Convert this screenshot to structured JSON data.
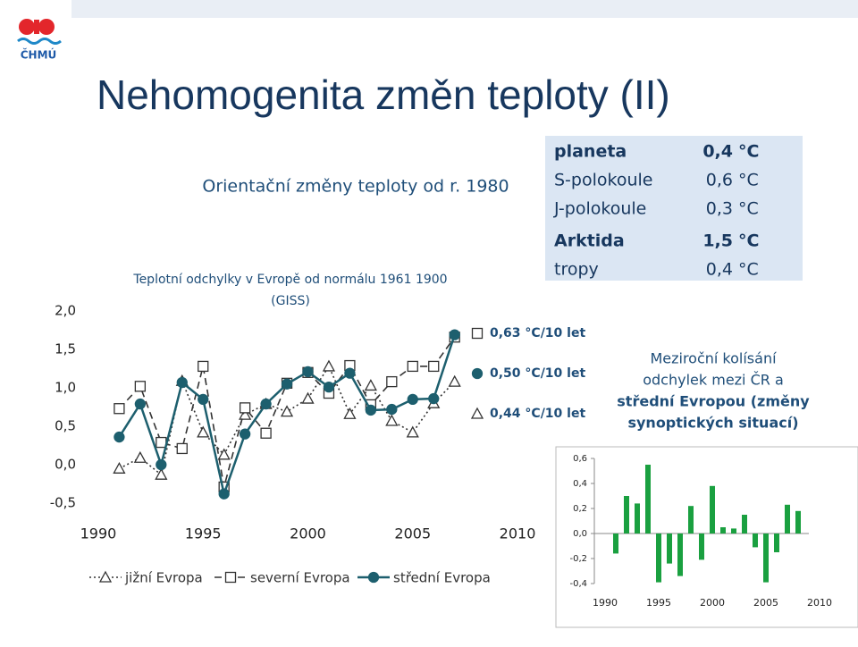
{
  "logo": "ČHMÚ",
  "title": "Nehomogenita změn teploty (II)",
  "subtitle": "Orientační změny teploty od r. 1980",
  "trends": [
    {
      "region": "planeta",
      "value": "0,4",
      "unit": "°C",
      "bold": true
    },
    {
      "region": "S-polokoule",
      "value": "0,6",
      "unit": "°C",
      "bold": false
    },
    {
      "region": "J-polokoule",
      "value": "0,3",
      "unit": "°C",
      "bold": false
    },
    {
      "region": "Arktida",
      "value": "1,5",
      "unit": "°C",
      "bold": true
    },
    {
      "region": "tropy",
      "value": "0,4",
      "unit": "°C",
      "bold": false
    }
  ],
  "chart_data": [
    {
      "type": "line",
      "title": [
        "Teplotní odchylky v Evropě od  normálu 1961 1900",
        "(GISS)"
      ],
      "x": [
        1991,
        1992,
        1993,
        1994,
        1995,
        1996,
        1997,
        1998,
        1999,
        2000,
        2001,
        2002,
        2003,
        2004,
        2005,
        2006,
        2007
      ],
      "series": [
        {
          "name": "jižní Evropa",
          "color": "#333333",
          "dash": "2,3",
          "marker": "triangle",
          "values": [
            -0.05,
            0.09,
            -0.13,
            1.09,
            0.42,
            0.13,
            0.65,
            0.79,
            0.69,
            0.86,
            1.28,
            0.66,
            1.03,
            0.57,
            0.42,
            0.8,
            1.08
          ]
        },
        {
          "name": "severní Evropa",
          "color": "#333333",
          "dash": "8,5",
          "marker": "square",
          "values": [
            0.73,
            1.02,
            0.29,
            0.21,
            1.28,
            -0.29,
            0.74,
            0.41,
            1.06,
            1.2,
            0.93,
            1.29,
            0.78,
            1.08,
            1.28,
            1.28,
            1.66
          ]
        },
        {
          "name": "střední Evropa",
          "color": "#1d5f6e",
          "dash": "none",
          "marker": "circle",
          "values": [
            0.36,
            0.79,
            0.0,
            1.07,
            0.85,
            -0.38,
            0.4,
            0.79,
            1.05,
            1.21,
            1.01,
            1.19,
            0.71,
            0.72,
            0.85,
            0.86,
            1.69
          ]
        }
      ],
      "annotations": [
        "0,63 °C/10 let",
        "0,50 °C/10 let",
        "0,44 °C/10 let"
      ],
      "xlim": [
        1989,
        2011
      ],
      "xticks": [
        1990,
        1995,
        2000,
        2005,
        2010
      ],
      "ylim": [
        -0.5,
        2.0
      ],
      "yticks": [
        {
          "value": -0.5,
          "label": "-0,5"
        },
        {
          "value": 0,
          "label": "0,0"
        },
        {
          "value": 0.5,
          "label": "0,5"
        },
        {
          "value": 1,
          "label": "1,0"
        },
        {
          "value": 1.5,
          "label": "1,5"
        },
        {
          "value": 2,
          "label": "2,0"
        }
      ]
    },
    {
      "type": "bar",
      "title": [
        "Meziroční kolísání",
        "odchylek mezi ČR a",
        "střední Evropou (změny",
        "synoptických situací)"
      ],
      "x": [
        1991,
        1992,
        1993,
        1994,
        1995,
        1996,
        1997,
        1998,
        1999,
        2000,
        2001,
        2002,
        2003,
        2004,
        2005,
        2006,
        2007,
        2008
      ],
      "values": [
        -0.16,
        0.3,
        0.24,
        0.55,
        -0.39,
        -0.24,
        -0.34,
        0.22,
        -0.21,
        0.38,
        0.05,
        0.04,
        0.15,
        -0.11,
        -0.39,
        -0.15,
        0.23,
        0.18
      ],
      "color": "#1aa040",
      "xlim": [
        1985.5,
        2013.5
      ],
      "xticks": [
        1990,
        1995,
        2000,
        2005,
        2010
      ],
      "ylim": [
        -0.4,
        0.6
      ],
      "yticks": [
        {
          "value": -0.4,
          "label": "-0,4"
        },
        {
          "value": -0.2,
          "label": "-0,2"
        },
        {
          "value": 0,
          "label": "0,0"
        },
        {
          "value": 0.2,
          "label": "0,2"
        },
        {
          "value": 0.4,
          "label": "0,4"
        },
        {
          "value": 0.6,
          "label": "0,6"
        }
      ]
    }
  ]
}
